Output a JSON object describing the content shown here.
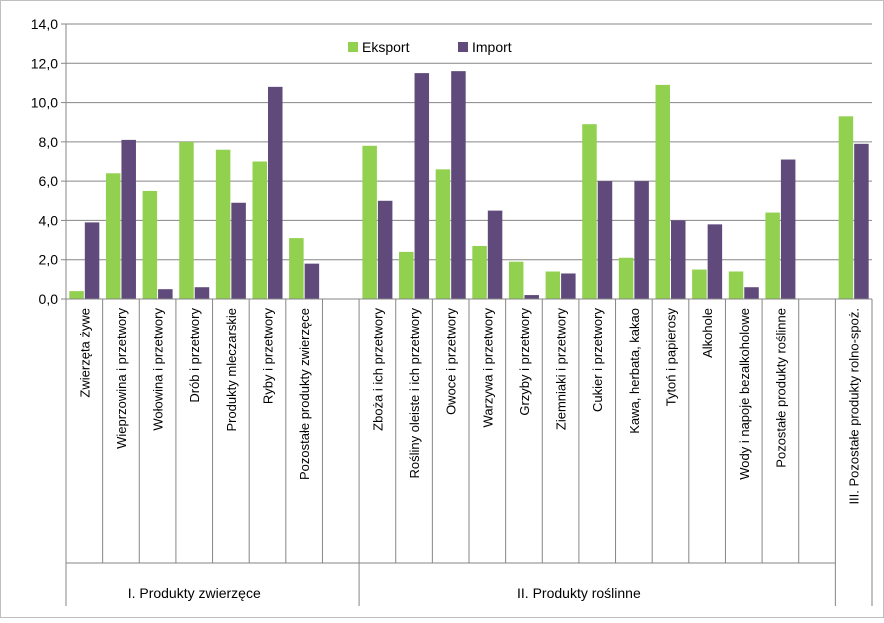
{
  "chart_data": {
    "type": "bar",
    "ylim": [
      0,
      14
    ],
    "yticks": [
      "0,0",
      "2,0",
      "4,0",
      "6,0",
      "8,0",
      "10,0",
      "12,0",
      "14,0"
    ],
    "grid": true,
    "legend_position": "top-center",
    "categories": [
      "Zwierzęta żywe",
      "Wieprzowina i przetwory",
      "Wołowina i przetwory",
      "Drób i przetwory",
      "Produkty mleczarskie",
      "Ryby i przetwory",
      "Pozostałe produkty zwierzęce",
      "",
      "Zboża i ich przetwory",
      "Rośliny oleiste i ich przetwory",
      "Owoce i przetwory",
      "Warzywa i przetwory",
      "Grzyby i przetwory",
      "Ziemniaki i przetwory",
      "Cukier i przetwory",
      "Kawa, herbata, kakao",
      "Tytoń i papierosy",
      "Alkohole",
      "Wody i napoje bezalkoholowe",
      "Pozostałe produkty roślinne",
      "",
      "III. Pozostałe produkty rolno-spoż."
    ],
    "series": [
      {
        "name": "Eksport",
        "color": "#92D050",
        "values": [
          0.4,
          6.4,
          5.5,
          8.0,
          7.6,
          7.0,
          3.1,
          null,
          7.8,
          2.4,
          6.6,
          2.7,
          1.9,
          1.4,
          8.9,
          2.1,
          10.9,
          1.5,
          1.4,
          4.4,
          null,
          9.3
        ]
      },
      {
        "name": "Import",
        "color": "#604A7B",
        "values": [
          3.9,
          8.1,
          0.5,
          0.6,
          4.9,
          10.8,
          1.8,
          null,
          5.0,
          11.5,
          11.6,
          4.5,
          0.2,
          1.3,
          6.0,
          6.0,
          4.0,
          3.8,
          0.6,
          7.1,
          null,
          7.9
        ]
      }
    ],
    "groups": [
      {
        "label": "I. Produkty zwierzęce",
        "start": 0,
        "end": 7
      },
      {
        "label": "II. Produkty roślinne",
        "start": 8,
        "end": 20
      }
    ]
  }
}
